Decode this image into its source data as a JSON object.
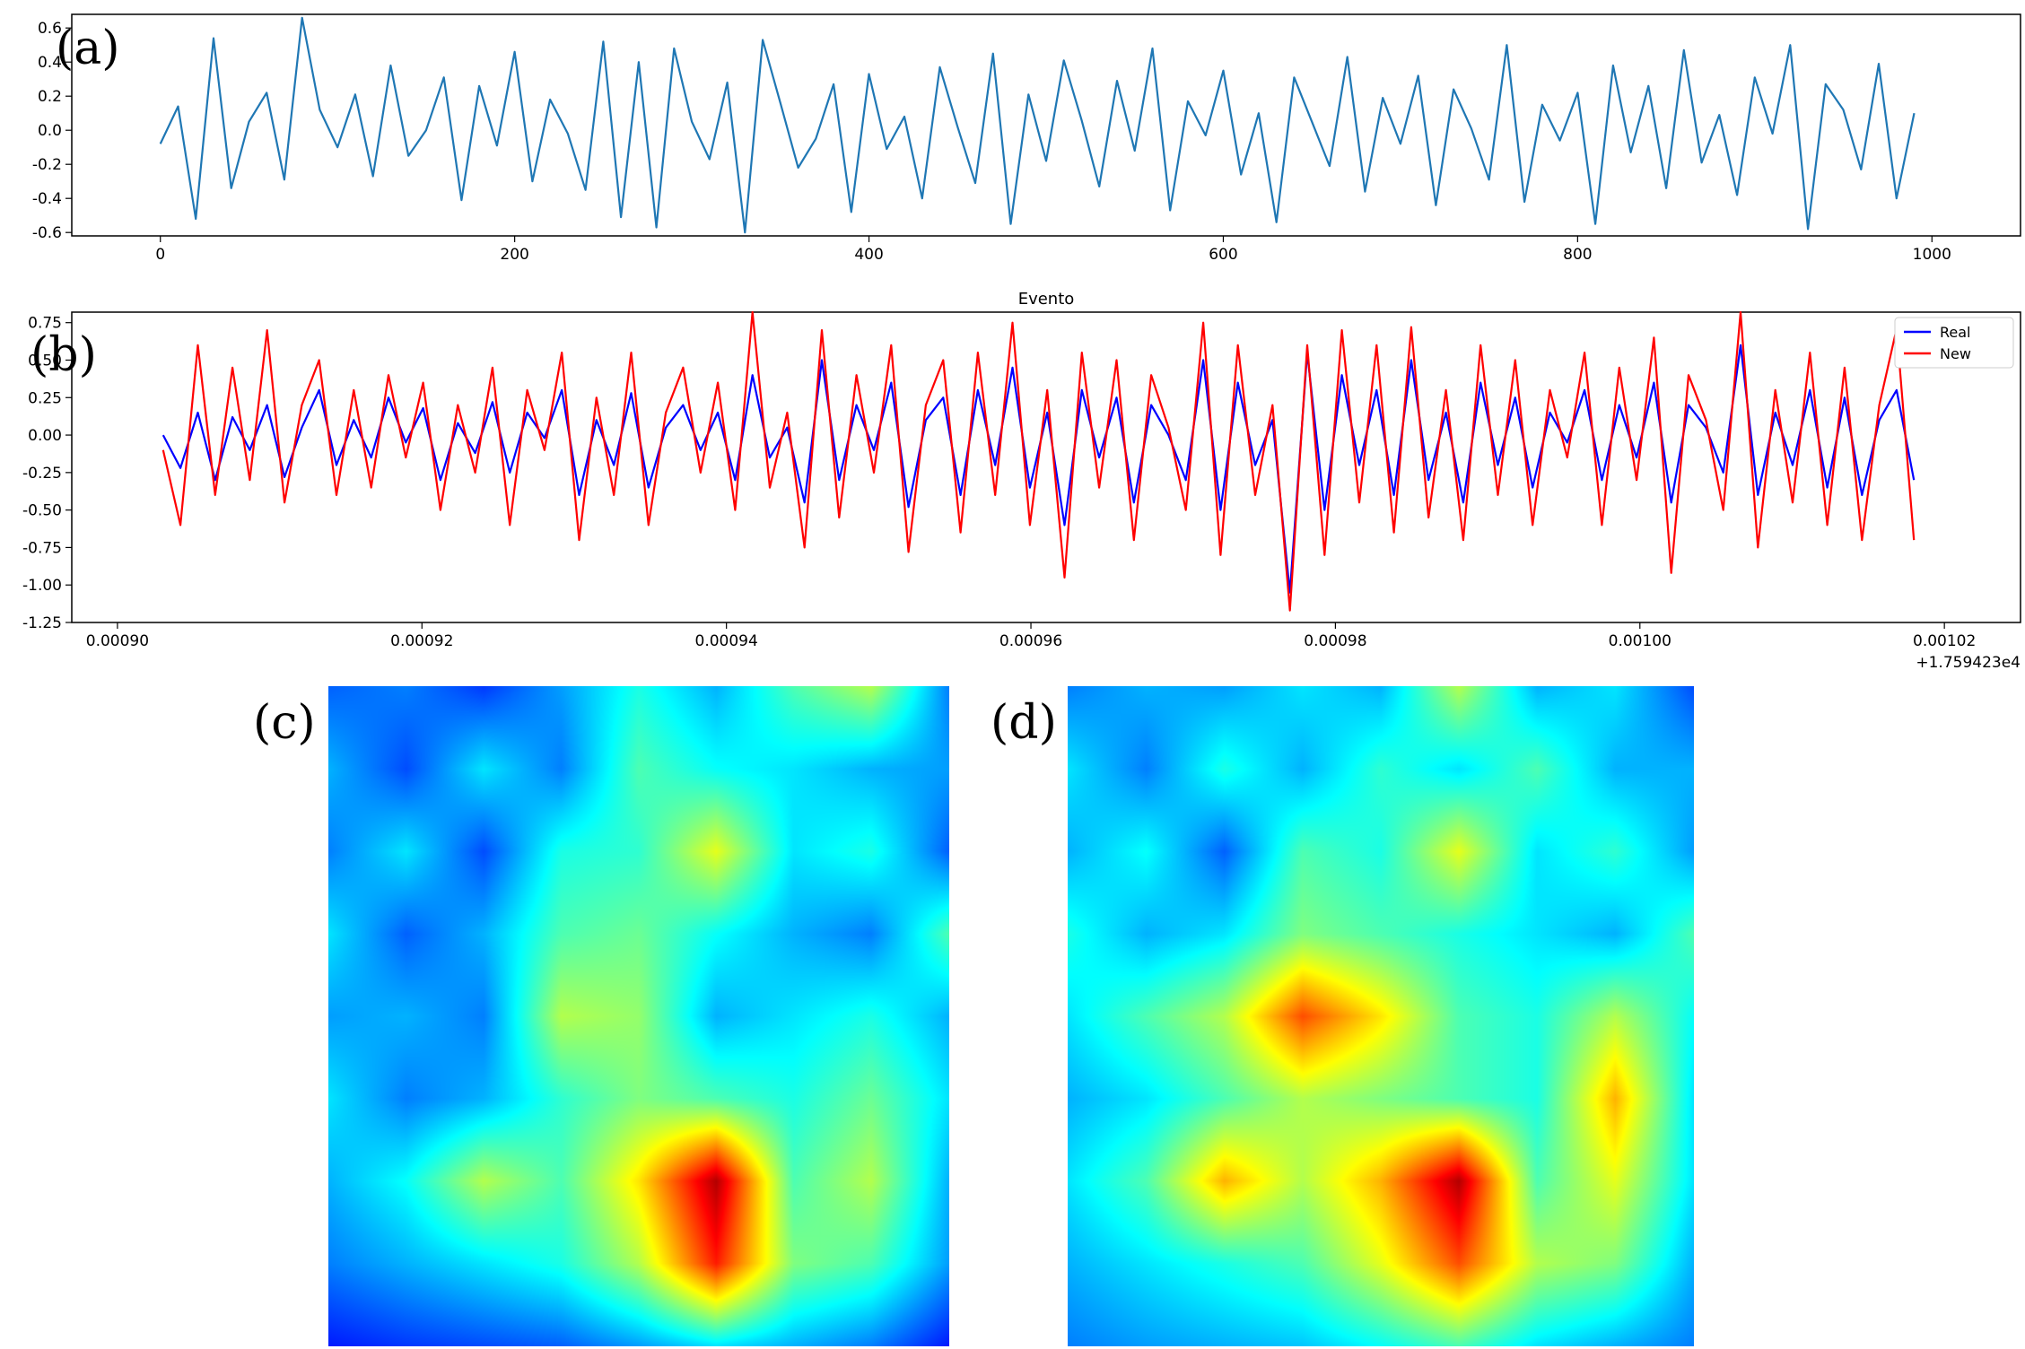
{
  "panel_labels": {
    "a": "(a)",
    "b": "(b)",
    "c": "(c)",
    "d": "(d)"
  },
  "colors": {
    "series_a": "#1f77b4",
    "real": "#0000ff",
    "new": "#ff0000",
    "axis": "#000000"
  },
  "chart_data": [
    {
      "id": "a",
      "type": "line",
      "title": "",
      "xlabel": "",
      "ylabel": "",
      "xlim": [
        -50,
        1050
      ],
      "ylim": [
        -0.62,
        0.68
      ],
      "x_ticks": [
        0,
        200,
        400,
        600,
        800,
        1000
      ],
      "x_tick_labels": [
        "0",
        "200",
        "400",
        "600",
        "800",
        "1000"
      ],
      "y_ticks": [
        -0.6,
        -0.4,
        -0.2,
        0.0,
        0.2,
        0.4,
        0.6
      ],
      "y_tick_labels": [
        "-0.6",
        "-0.4",
        "-0.2",
        "0.0",
        "0.2",
        "0.4",
        "0.6"
      ],
      "grid": false,
      "series": [
        {
          "x_start": 0,
          "x_step": 10,
          "values": [
            -0.08,
            0.14,
            -0.52,
            0.54,
            -0.34,
            0.05,
            0.22,
            -0.29,
            0.66,
            0.12,
            -0.1,
            0.21,
            -0.27,
            0.38,
            -0.15,
            0.0,
            0.31,
            -0.41,
            0.26,
            -0.09,
            0.46,
            -0.3,
            0.18,
            -0.02,
            -0.35,
            0.52,
            -0.51,
            0.4,
            -0.57,
            0.48,
            0.05,
            -0.17,
            0.28,
            -0.6,
            0.53,
            0.16,
            -0.22,
            -0.05,
            0.27,
            -0.48,
            0.33,
            -0.11,
            0.08,
            -0.4,
            0.37,
            0.02,
            -0.31,
            0.45,
            -0.55,
            0.21,
            -0.18,
            0.41,
            0.06,
            -0.33,
            0.29,
            -0.12,
            0.48,
            -0.47,
            0.17,
            -0.03,
            0.35,
            -0.26,
            0.1,
            -0.54,
            0.31,
            0.05,
            -0.21,
            0.43,
            -0.36,
            0.19,
            -0.08,
            0.32,
            -0.44,
            0.24,
            0.01,
            -0.29,
            0.5,
            -0.42,
            0.15,
            -0.06,
            0.22,
            -0.55,
            0.38,
            -0.13,
            0.26,
            -0.34,
            0.47,
            -0.19,
            0.09,
            -0.38,
            0.31,
            -0.02,
            0.5,
            -0.58,
            0.27,
            0.12,
            -0.23,
            0.39,
            -0.4,
            0.1
          ]
        }
      ]
    },
    {
      "id": "b",
      "type": "line",
      "title": "Evento",
      "xlabel": "",
      "ylabel": "",
      "offset_text": "+1.759423e4",
      "xlim": [
        0.000897,
        0.001025
      ],
      "ylim": [
        -1.25,
        0.82
      ],
      "x_ticks": [
        0.0009,
        0.00092,
        0.00094,
        0.00096,
        0.00098,
        0.001,
        0.00102
      ],
      "x_tick_labels": [
        "0.00090",
        "0.00092",
        "0.00094",
        "0.00096",
        "0.00098",
        "0.00100",
        "0.00102"
      ],
      "y_ticks": [
        -1.25,
        -1.0,
        -0.75,
        -0.5,
        -0.25,
        0.0,
        0.25,
        0.5,
        0.75
      ],
      "y_tick_labels": [
        "-1.25",
        "-1.00",
        "-0.75",
        "-0.50",
        "-0.25",
        "0.00",
        "0.25",
        "0.50",
        "0.75"
      ],
      "legend": {
        "placement": "top-right",
        "entries": [
          "Real",
          "New"
        ]
      },
      "grid": false,
      "x_start": 0.000903,
      "x_end": 0.001018,
      "series": [
        {
          "name": "Real",
          "values": [
            0.0,
            -0.22,
            0.15,
            -0.3,
            0.12,
            -0.1,
            0.2,
            -0.28,
            0.05,
            0.3,
            -0.2,
            0.1,
            -0.15,
            0.25,
            -0.05,
            0.18,
            -0.3,
            0.08,
            -0.12,
            0.22,
            -0.25,
            0.15,
            -0.02,
            0.3,
            -0.4,
            0.1,
            -0.2,
            0.28,
            -0.35,
            0.05,
            0.2,
            -0.1,
            0.15,
            -0.3,
            0.4,
            -0.15,
            0.05,
            -0.45,
            0.5,
            -0.3,
            0.2,
            -0.1,
            0.35,
            -0.48,
            0.1,
            0.25,
            -0.4,
            0.3,
            -0.2,
            0.45,
            -0.35,
            0.15,
            -0.6,
            0.3,
            -0.15,
            0.25,
            -0.45,
            0.2,
            0.0,
            -0.3,
            0.5,
            -0.5,
            0.35,
            -0.2,
            0.1,
            -1.05,
            0.55,
            -0.5,
            0.4,
            -0.2,
            0.3,
            -0.4,
            0.5,
            -0.3,
            0.15,
            -0.45,
            0.35,
            -0.2,
            0.25,
            -0.35,
            0.15,
            -0.05,
            0.3,
            -0.3,
            0.2,
            -0.15,
            0.35,
            -0.45,
            0.2,
            0.05,
            -0.25,
            0.6,
            -0.4,
            0.15,
            -0.2,
            0.3,
            -0.35,
            0.25,
            -0.4,
            0.1,
            0.3,
            -0.3
          ]
        },
        {
          "name": "New",
          "values": [
            -0.1,
            -0.6,
            0.6,
            -0.4,
            0.45,
            -0.3,
            0.7,
            -0.45,
            0.2,
            0.5,
            -0.4,
            0.3,
            -0.35,
            0.4,
            -0.15,
            0.35,
            -0.5,
            0.2,
            -0.25,
            0.45,
            -0.6,
            0.3,
            -0.1,
            0.55,
            -0.7,
            0.25,
            -0.4,
            0.55,
            -0.6,
            0.15,
            0.45,
            -0.25,
            0.35,
            -0.5,
            0.82,
            -0.35,
            0.15,
            -0.75,
            0.7,
            -0.55,
            0.4,
            -0.25,
            0.6,
            -0.78,
            0.2,
            0.5,
            -0.65,
            0.55,
            -0.4,
            0.75,
            -0.6,
            0.3,
            -0.95,
            0.55,
            -0.35,
            0.5,
            -0.7,
            0.4,
            0.05,
            -0.5,
            0.75,
            -0.8,
            0.6,
            -0.4,
            0.2,
            -1.17,
            0.6,
            -0.8,
            0.7,
            -0.45,
            0.6,
            -0.65,
            0.72,
            -0.55,
            0.3,
            -0.7,
            0.6,
            -0.4,
            0.5,
            -0.6,
            0.3,
            -0.15,
            0.55,
            -0.6,
            0.45,
            -0.3,
            0.65,
            -0.92,
            0.4,
            0.1,
            -0.5,
            0.82,
            -0.75,
            0.3,
            -0.45,
            0.55,
            -0.6,
            0.45,
            -0.7,
            0.2,
            0.71,
            -0.7
          ]
        }
      ]
    },
    {
      "id": "c",
      "type": "heatmap",
      "colormap": "jet",
      "rows": 9,
      "cols": 9,
      "values": [
        [
          0.22,
          0.25,
          0.18,
          0.28,
          0.4,
          0.3,
          0.45,
          0.55,
          0.25
        ],
        [
          0.3,
          0.2,
          0.35,
          0.25,
          0.45,
          0.38,
          0.35,
          0.3,
          0.28
        ],
        [
          0.25,
          0.35,
          0.2,
          0.4,
          0.42,
          0.6,
          0.35,
          0.4,
          0.22
        ],
        [
          0.35,
          0.22,
          0.3,
          0.45,
          0.48,
          0.38,
          0.3,
          0.25,
          0.45
        ],
        [
          0.28,
          0.3,
          0.25,
          0.55,
          0.52,
          0.3,
          0.35,
          0.4,
          0.3
        ],
        [
          0.35,
          0.25,
          0.3,
          0.42,
          0.5,
          0.45,
          0.4,
          0.48,
          0.35
        ],
        [
          0.3,
          0.38,
          0.55,
          0.45,
          0.65,
          0.95,
          0.45,
          0.55,
          0.3
        ],
        [
          0.25,
          0.3,
          0.35,
          0.4,
          0.55,
          0.85,
          0.5,
          0.45,
          0.28
        ],
        [
          0.15,
          0.18,
          0.2,
          0.22,
          0.28,
          0.35,
          0.3,
          0.25,
          0.15
        ]
      ]
    },
    {
      "id": "d",
      "type": "heatmap",
      "colormap": "jet",
      "rows": 9,
      "cols": 9,
      "values": [
        [
          0.25,
          0.3,
          0.28,
          0.35,
          0.3,
          0.55,
          0.3,
          0.35,
          0.2
        ],
        [
          0.35,
          0.25,
          0.4,
          0.3,
          0.42,
          0.35,
          0.45,
          0.3,
          0.3
        ],
        [
          0.3,
          0.38,
          0.22,
          0.45,
          0.4,
          0.6,
          0.35,
          0.42,
          0.28
        ],
        [
          0.4,
          0.3,
          0.35,
          0.5,
          0.45,
          0.4,
          0.35,
          0.3,
          0.45
        ],
        [
          0.35,
          0.45,
          0.55,
          0.8,
          0.65,
          0.45,
          0.4,
          0.55,
          0.38
        ],
        [
          0.3,
          0.35,
          0.45,
          0.55,
          0.5,
          0.45,
          0.4,
          0.7,
          0.35
        ],
        [
          0.35,
          0.45,
          0.7,
          0.55,
          0.7,
          0.95,
          0.45,
          0.6,
          0.35
        ],
        [
          0.3,
          0.35,
          0.4,
          0.45,
          0.6,
          0.8,
          0.55,
          0.5,
          0.3
        ],
        [
          0.25,
          0.28,
          0.3,
          0.32,
          0.38,
          0.45,
          0.35,
          0.3,
          0.25
        ]
      ]
    }
  ]
}
